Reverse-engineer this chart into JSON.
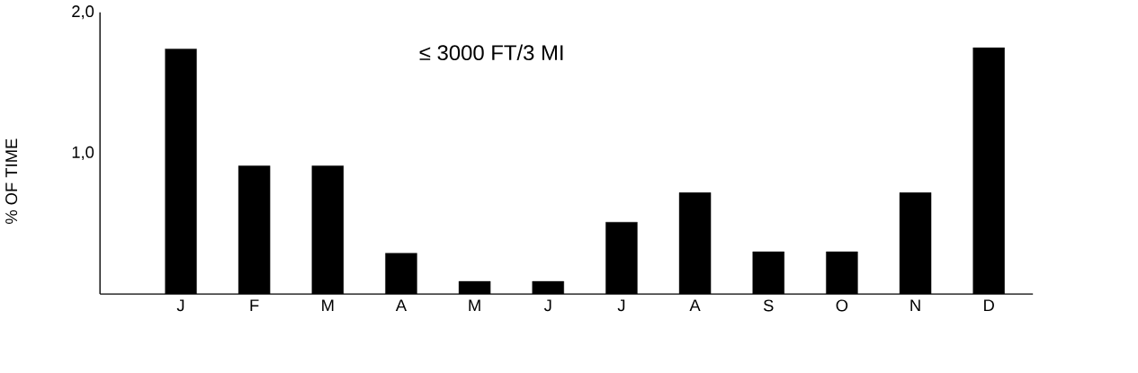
{
  "chart_data": {
    "type": "bar",
    "title": "≤ 3000 FT/3 MI",
    "ylabel": "% OF TIME",
    "categories": [
      "J",
      "F",
      "M",
      "A",
      "M",
      "J",
      "J",
      "A",
      "S",
      "O",
      "N",
      "D"
    ],
    "values": [
      1.74,
      0.91,
      0.91,
      0.29,
      0.09,
      0.09,
      0.51,
      0.72,
      0.3,
      0.3,
      0.72,
      1.75
    ],
    "color": "#000000",
    "ylim": [
      0,
      2
    ],
    "yticks": [
      {
        "value": 1,
        "label": "1,0"
      },
      {
        "value": 2,
        "label": "2,0"
      }
    ]
  }
}
